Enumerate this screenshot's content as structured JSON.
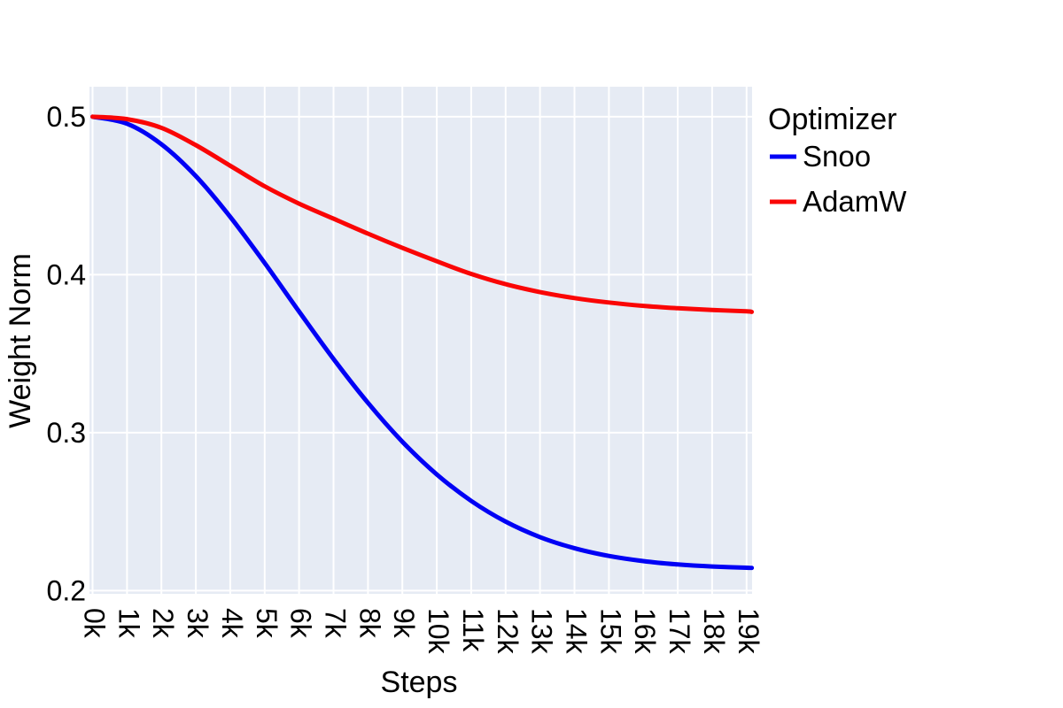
{
  "figure": {
    "background_color": "#FFFFFF",
    "panel_background_color": "#E6EBF4",
    "grid_color": "#FFFFFF",
    "text_color": "#000000"
  },
  "chart_data": {
    "type": "line",
    "title": "",
    "xlabel": "Steps",
    "ylabel": "Weight Norm",
    "grid": true,
    "legend_position": "right-top-outside",
    "xlim_k": [
      -0.09,
      19.16
    ],
    "ylim": [
      0.198,
      0.519
    ],
    "x_tick_values_k": [
      0,
      1,
      2,
      3,
      4,
      5,
      6,
      7,
      8,
      9,
      10,
      11,
      12,
      13,
      14,
      15,
      16,
      17,
      18,
      19
    ],
    "x_tick_labels": [
      "0k",
      "1k",
      "2k",
      "3k",
      "4k",
      "5k",
      "6k",
      "7k",
      "8k",
      "9k",
      "10k",
      "11k",
      "12k",
      "13k",
      "14k",
      "15k",
      "16k",
      "17k",
      "18k",
      "19k"
    ],
    "x_tick_rotation_deg": 90,
    "y_tick_values": [
      0.2,
      0.3,
      0.4,
      0.5
    ],
    "y_tick_labels": [
      "0.2",
      "0.3",
      "0.4",
      "0.5"
    ],
    "x_k": [
      0,
      1,
      2,
      3,
      4,
      5,
      6,
      7,
      8,
      9,
      10,
      11,
      12,
      13,
      14,
      15,
      16,
      17,
      18,
      19,
      19.15
    ],
    "series": [
      {
        "name": "Snoo",
        "color": "#0000F5",
        "values": [
          0.5,
          0.4956,
          0.4826,
          0.4624,
          0.4366,
          0.4074,
          0.3767,
          0.3467,
          0.3189,
          0.2943,
          0.2736,
          0.2568,
          0.2437,
          0.2339,
          0.2269,
          0.222,
          0.2187,
          0.2166,
          0.2153,
          0.2145,
          0.2144
        ]
      },
      {
        "name": "AdamW",
        "color": "#FA0505",
        "values": [
          0.5,
          0.4985,
          0.493,
          0.482,
          0.469,
          0.456,
          0.445,
          0.4355,
          0.426,
          0.417,
          0.4085,
          0.4005,
          0.394,
          0.389,
          0.3852,
          0.3824,
          0.3803,
          0.3788,
          0.3777,
          0.3768,
          0.3765
        ]
      }
    ]
  },
  "legend": {
    "title": "Optimizer",
    "entries": [
      {
        "label": "Snoo",
        "color": "#0000F5"
      },
      {
        "label": "AdamW",
        "color": "#FA0505"
      }
    ]
  }
}
